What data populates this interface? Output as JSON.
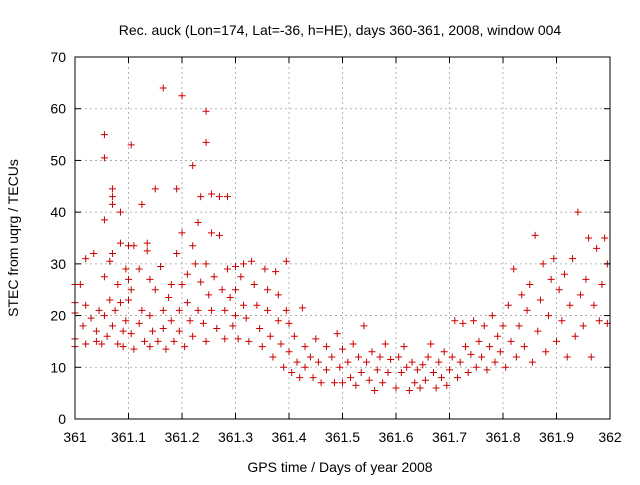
{
  "chart_data": {
    "type": "scatter",
    "title": "Rec. auck (Lon=174, Lat=-36, h=HE), days 360-361, 2008, window 004",
    "xlabel": "GPS time / Days of year 2008",
    "ylabel": "STEC from uqrg / TECUs",
    "xlim": [
      361,
      362
    ],
    "ylim": [
      0,
      70
    ],
    "x_ticks": [
      361,
      361.1,
      361.2,
      361.3,
      361.4,
      361.5,
      361.6,
      361.7,
      361.8,
      361.9,
      362
    ],
    "x_tick_labels": [
      "361",
      "361.1",
      "361.2",
      "361.3",
      "361.4",
      "361.5",
      "361.6",
      "361.7",
      "361.8",
      "361.9",
      "362"
    ],
    "y_ticks": [
      0,
      10,
      20,
      30,
      40,
      50,
      60,
      70
    ],
    "y_tick_labels": [
      "0",
      "10",
      "20",
      "30",
      "40",
      "50",
      "60",
      "70"
    ],
    "grid": true,
    "marker": "plus",
    "color": "#cc0000",
    "points": [
      [
        361.0,
        20.5
      ],
      [
        361.0,
        22.5
      ],
      [
        361.0,
        26
      ],
      [
        361.0,
        15.5
      ],
      [
        361.0,
        14
      ],
      [
        361.01,
        26
      ],
      [
        361.015,
        18
      ],
      [
        361.02,
        31
      ],
      [
        361.02,
        22
      ],
      [
        361.02,
        14.5
      ],
      [
        361.03,
        19.5
      ],
      [
        361.035,
        32
      ],
      [
        361.04,
        17
      ],
      [
        361.04,
        15
      ],
      [
        361.045,
        21
      ],
      [
        361.05,
        14.5
      ],
      [
        361.055,
        55
      ],
      [
        361.055,
        50.5
      ],
      [
        361.055,
        38.5
      ],
      [
        361.055,
        27.5
      ],
      [
        361.055,
        20
      ],
      [
        361.06,
        16
      ],
      [
        361.065,
        30.5
      ],
      [
        361.065,
        23
      ],
      [
        361.07,
        44.5
      ],
      [
        361.07,
        43
      ],
      [
        361.07,
        41.5
      ],
      [
        361.07,
        32
      ],
      [
        361.07,
        18
      ],
      [
        361.075,
        21
      ],
      [
        361.08,
        14.5
      ],
      [
        361.08,
        26
      ],
      [
        361.085,
        40
      ],
      [
        361.085,
        34
      ],
      [
        361.085,
        22.5
      ],
      [
        361.09,
        17
      ],
      [
        361.09,
        14
      ],
      [
        361.095,
        29
      ],
      [
        361.095,
        19
      ],
      [
        361.1,
        33.5
      ],
      [
        361.1,
        27
      ],
      [
        361.1,
        23
      ],
      [
        361.105,
        53
      ],
      [
        361.105,
        25
      ],
      [
        361.105,
        16.5
      ],
      [
        361.11,
        33.5
      ],
      [
        361.11,
        13.5
      ],
      [
        361.12,
        29
      ],
      [
        361.12,
        18.5
      ],
      [
        361.125,
        41.5
      ],
      [
        361.125,
        21
      ],
      [
        361.13,
        15
      ],
      [
        361.135,
        34
      ],
      [
        361.135,
        32.5
      ],
      [
        361.14,
        27
      ],
      [
        361.14,
        20
      ],
      [
        361.14,
        14
      ],
      [
        361.145,
        17
      ],
      [
        361.15,
        44.5
      ],
      [
        361.15,
        25
      ],
      [
        361.155,
        15
      ],
      [
        361.16,
        29.5
      ],
      [
        361.165,
        64
      ],
      [
        361.165,
        21
      ],
      [
        361.165,
        17.5
      ],
      [
        361.17,
        13.5
      ],
      [
        361.175,
        23.5
      ],
      [
        361.18,
        26
      ],
      [
        361.18,
        19
      ],
      [
        361.185,
        15
      ],
      [
        361.19,
        44.5
      ],
      [
        361.19,
        32
      ],
      [
        361.195,
        21
      ],
      [
        361.195,
        17
      ],
      [
        361.2,
        62.5
      ],
      [
        361.2,
        36
      ],
      [
        361.2,
        26
      ],
      [
        361.205,
        14
      ],
      [
        361.21,
        28
      ],
      [
        361.21,
        22.5
      ],
      [
        361.215,
        19
      ],
      [
        361.22,
        49
      ],
      [
        361.22,
        33.5
      ],
      [
        361.22,
        16
      ],
      [
        361.225,
        30
      ],
      [
        361.23,
        38
      ],
      [
        361.23,
        21
      ],
      [
        361.235,
        43
      ],
      [
        361.235,
        26.5
      ],
      [
        361.24,
        18.5
      ],
      [
        361.245,
        59.5
      ],
      [
        361.245,
        53.5
      ],
      [
        361.245,
        30
      ],
      [
        361.245,
        15
      ],
      [
        361.25,
        24
      ],
      [
        361.255,
        43.5
      ],
      [
        361.255,
        36
      ],
      [
        361.255,
        21
      ],
      [
        361.26,
        27.5
      ],
      [
        361.265,
        17.5
      ],
      [
        361.27,
        43
      ],
      [
        361.27,
        35.5
      ],
      [
        361.275,
        25
      ],
      [
        361.28,
        21
      ],
      [
        361.28,
        15.5
      ],
      [
        361.285,
        43
      ],
      [
        361.285,
        29
      ],
      [
        361.29,
        23.5
      ],
      [
        361.295,
        18
      ],
      [
        361.3,
        29.5
      ],
      [
        361.3,
        25
      ],
      [
        361.3,
        20
      ],
      [
        361.305,
        15.5
      ],
      [
        361.31,
        27.5
      ],
      [
        361.315,
        30
      ],
      [
        361.315,
        22
      ],
      [
        361.32,
        19.5
      ],
      [
        361.325,
        15
      ],
      [
        361.33,
        30.5
      ],
      [
        361.335,
        26
      ],
      [
        361.34,
        22
      ],
      [
        361.345,
        17.5
      ],
      [
        361.35,
        14
      ],
      [
        361.355,
        29
      ],
      [
        361.36,
        25
      ],
      [
        361.36,
        21
      ],
      [
        361.365,
        16
      ],
      [
        361.37,
        12
      ],
      [
        361.375,
        28.5
      ],
      [
        361.38,
        24
      ],
      [
        361.38,
        19
      ],
      [
        361.385,
        14.5
      ],
      [
        361.39,
        10
      ],
      [
        361.395,
        30.5
      ],
      [
        361.395,
        21
      ],
      [
        361.4,
        18.5
      ],
      [
        361.4,
        13
      ],
      [
        361.405,
        9
      ],
      [
        361.41,
        16
      ],
      [
        361.415,
        11
      ],
      [
        361.42,
        8
      ],
      [
        361.425,
        21.5
      ],
      [
        361.43,
        14
      ],
      [
        361.43,
        10
      ],
      [
        361.44,
        12
      ],
      [
        361.445,
        8
      ],
      [
        361.45,
        15.5
      ],
      [
        361.455,
        11
      ],
      [
        361.46,
        7
      ],
      [
        361.47,
        14
      ],
      [
        361.47,
        9.5
      ],
      [
        361.48,
        12
      ],
      [
        361.485,
        7
      ],
      [
        361.49,
        16.5
      ],
      [
        361.495,
        10
      ],
      [
        361.5,
        13.5
      ],
      [
        361.5,
        7
      ],
      [
        361.51,
        11
      ],
      [
        361.515,
        8
      ],
      [
        361.52,
        14.5
      ],
      [
        361.525,
        6.5
      ],
      [
        361.53,
        12
      ],
      [
        361.535,
        9
      ],
      [
        361.54,
        18
      ],
      [
        361.545,
        11
      ],
      [
        361.55,
        7.5
      ],
      [
        361.555,
        13
      ],
      [
        361.56,
        5.5
      ],
      [
        361.565,
        9.5
      ],
      [
        361.57,
        12
      ],
      [
        361.575,
        7
      ],
      [
        361.58,
        14.5
      ],
      [
        361.585,
        9
      ],
      [
        361.59,
        11.5
      ],
      [
        361.6,
        6
      ],
      [
        361.605,
        12
      ],
      [
        361.61,
        9
      ],
      [
        361.615,
        14
      ],
      [
        361.62,
        10
      ],
      [
        361.625,
        5.5
      ],
      [
        361.63,
        11
      ],
      [
        361.635,
        7
      ],
      [
        361.64,
        9.5
      ],
      [
        361.645,
        6
      ],
      [
        361.65,
        10.5
      ],
      [
        361.655,
        7.5
      ],
      [
        361.66,
        12
      ],
      [
        361.665,
        14.5
      ],
      [
        361.67,
        9
      ],
      [
        361.675,
        6
      ],
      [
        361.68,
        11
      ],
      [
        361.685,
        8
      ],
      [
        361.69,
        13
      ],
      [
        361.695,
        6.5
      ],
      [
        361.7,
        9.5
      ],
      [
        361.705,
        12
      ],
      [
        361.71,
        19
      ],
      [
        361.715,
        8
      ],
      [
        361.72,
        11
      ],
      [
        361.725,
        18.5
      ],
      [
        361.73,
        14
      ],
      [
        361.735,
        9
      ],
      [
        361.74,
        12.5
      ],
      [
        361.745,
        19
      ],
      [
        361.75,
        10
      ],
      [
        361.755,
        15
      ],
      [
        361.76,
        12
      ],
      [
        361.765,
        18
      ],
      [
        361.77,
        9.5
      ],
      [
        361.775,
        14
      ],
      [
        361.78,
        20
      ],
      [
        361.785,
        11
      ],
      [
        361.79,
        16
      ],
      [
        361.795,
        13
      ],
      [
        361.8,
        18
      ],
      [
        361.805,
        10
      ],
      [
        361.81,
        22
      ],
      [
        361.815,
        15
      ],
      [
        361.82,
        29
      ],
      [
        361.825,
        12
      ],
      [
        361.83,
        18
      ],
      [
        361.835,
        24
      ],
      [
        361.84,
        14
      ],
      [
        361.845,
        21
      ],
      [
        361.85,
        26
      ],
      [
        361.855,
        11
      ],
      [
        361.86,
        35.5
      ],
      [
        361.865,
        17
      ],
      [
        361.87,
        23
      ],
      [
        361.875,
        30
      ],
      [
        361.88,
        13
      ],
      [
        361.885,
        20
      ],
      [
        361.89,
        27
      ],
      [
        361.895,
        31
      ],
      [
        361.9,
        15
      ],
      [
        361.905,
        25
      ],
      [
        361.91,
        19
      ],
      [
        361.915,
        28
      ],
      [
        361.92,
        12
      ],
      [
        361.925,
        22
      ],
      [
        361.93,
        31
      ],
      [
        361.935,
        16
      ],
      [
        361.94,
        40
      ],
      [
        361.945,
        24
      ],
      [
        361.95,
        18
      ],
      [
        361.955,
        27
      ],
      [
        361.96,
        35
      ],
      [
        361.965,
        12
      ],
      [
        361.97,
        22
      ],
      [
        361.975,
        33
      ],
      [
        361.98,
        19
      ],
      [
        361.985,
        26
      ],
      [
        361.99,
        35
      ],
      [
        361.995,
        30
      ],
      [
        361.995,
        18.5
      ]
    ]
  }
}
